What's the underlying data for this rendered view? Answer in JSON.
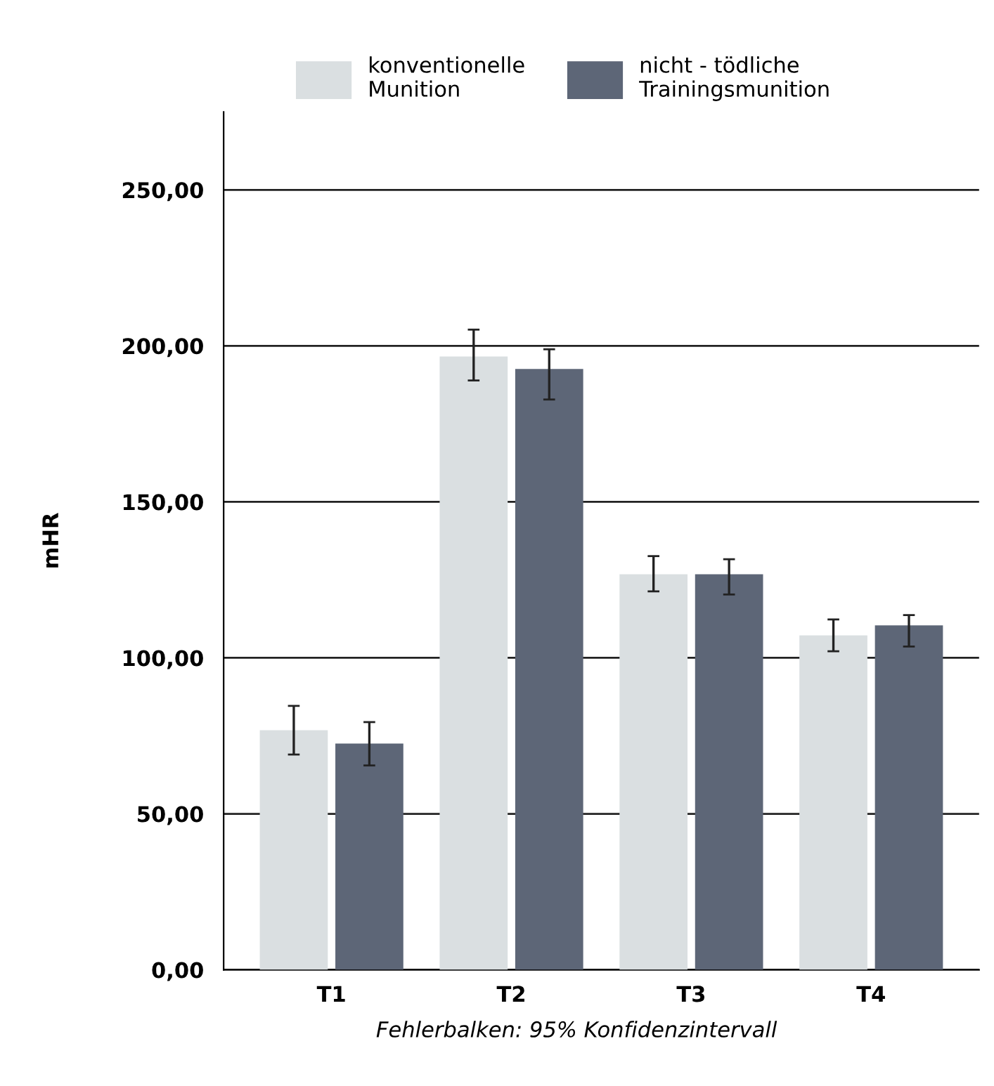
{
  "chart_data": {
    "type": "bar",
    "ylabel": "mHR",
    "categories": [
      "T1",
      "T2",
      "T3",
      "T4"
    ],
    "series": [
      {
        "name": "konventionelle\nMunition",
        "color": "#dadfe1",
        "values": [
          76.8,
          196.6,
          126.8,
          107.2
        ],
        "errors": [
          [
            69,
            84.6
          ],
          [
            188.9,
            205.2
          ],
          [
            121.3,
            132.6
          ],
          [
            102.1,
            112.3
          ]
        ]
      },
      {
        "name": "nicht - tödliche\nTrainingsmunition",
        "color": "#5d6677",
        "values": [
          72.5,
          192.6,
          126.8,
          110.4
        ],
        "errors": [
          [
            65.5,
            79.4
          ],
          [
            182.8,
            198.9
          ],
          [
            120.3,
            131.6
          ],
          [
            103.6,
            113.7
          ]
        ]
      }
    ],
    "ylim": [
      0,
      275
    ],
    "yticks": [
      {
        "value": 0,
        "label": "0,00"
      },
      {
        "value": 50,
        "label": "50,00"
      },
      {
        "value": 100,
        "label": "100,00"
      },
      {
        "value": 150,
        "label": "150,00"
      },
      {
        "value": 200,
        "label": "200,00"
      },
      {
        "value": 250,
        "label": "250,00"
      }
    ],
    "grid": "y",
    "legend": "top",
    "annotations": [
      "Fehlerbalken: 95% Konfidenzintervall"
    ]
  }
}
